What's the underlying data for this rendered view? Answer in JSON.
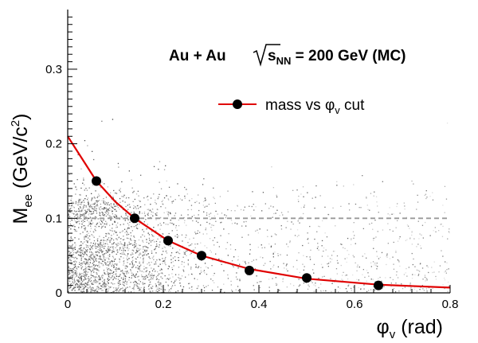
{
  "chart_data": {
    "type": "scatter",
    "xlabel": {
      "symbol": "φ",
      "sub": "v",
      "suffix": " (rad)"
    },
    "ylabel": {
      "main": "M",
      "sub": "ee",
      "unit_open": " (GeV/c",
      "unit_sup": "2",
      "unit_close": ")"
    },
    "xlim": [
      0,
      0.8
    ],
    "ylim": [
      0,
      0.38
    ],
    "x_ticks": [
      0,
      0.2,
      0.4,
      0.6,
      0.8
    ],
    "x_tick_labels": [
      "0",
      "0.2",
      "0.4",
      "0.6",
      "0.8"
    ],
    "y_ticks": [
      0,
      0.1,
      0.2,
      0.3
    ],
    "y_tick_labels": [
      "0",
      "0.1",
      "0.2",
      "0.3"
    ],
    "annotation": {
      "system": "Au + Au",
      "sqrt_base": "s",
      "sqrt_sub": "NN",
      "energy": " = 200 GeV (MC)"
    },
    "legend": {
      "placement": "top-right",
      "label_prefix": "mass vs ",
      "label_symbol": "φ",
      "label_sub": "v",
      "label_suffix": " cut"
    },
    "series": [
      {
        "type": "scatter",
        "color": "#000000",
        "points": [
          {
            "x": 0.06,
            "y": 0.15
          },
          {
            "x": 0.14,
            "y": 0.1
          },
          {
            "x": 0.21,
            "y": 0.07
          },
          {
            "x": 0.28,
            "y": 0.05
          },
          {
            "x": 0.38,
            "y": 0.03
          },
          {
            "x": 0.5,
            "y": 0.02
          },
          {
            "x": 0.65,
            "y": 0.01
          }
        ]
      },
      {
        "type": "line",
        "color": "#e00000",
        "curve": [
          {
            "x": 0.0,
            "y": 0.21
          },
          {
            "x": 0.03,
            "y": 0.18
          },
          {
            "x": 0.06,
            "y": 0.15
          },
          {
            "x": 0.1,
            "y": 0.122
          },
          {
            "x": 0.14,
            "y": 0.1
          },
          {
            "x": 0.21,
            "y": 0.07
          },
          {
            "x": 0.28,
            "y": 0.05
          },
          {
            "x": 0.38,
            "y": 0.032
          },
          {
            "x": 0.5,
            "y": 0.019
          },
          {
            "x": 0.65,
            "y": 0.011
          },
          {
            "x": 0.8,
            "y": 0.007
          }
        ]
      }
    ],
    "reference_line": {
      "y": 0.1,
      "style": "dashed",
      "color": "#999999"
    },
    "background_density": "grayscale scatter, dense at low M_ee and low φ_v"
  }
}
